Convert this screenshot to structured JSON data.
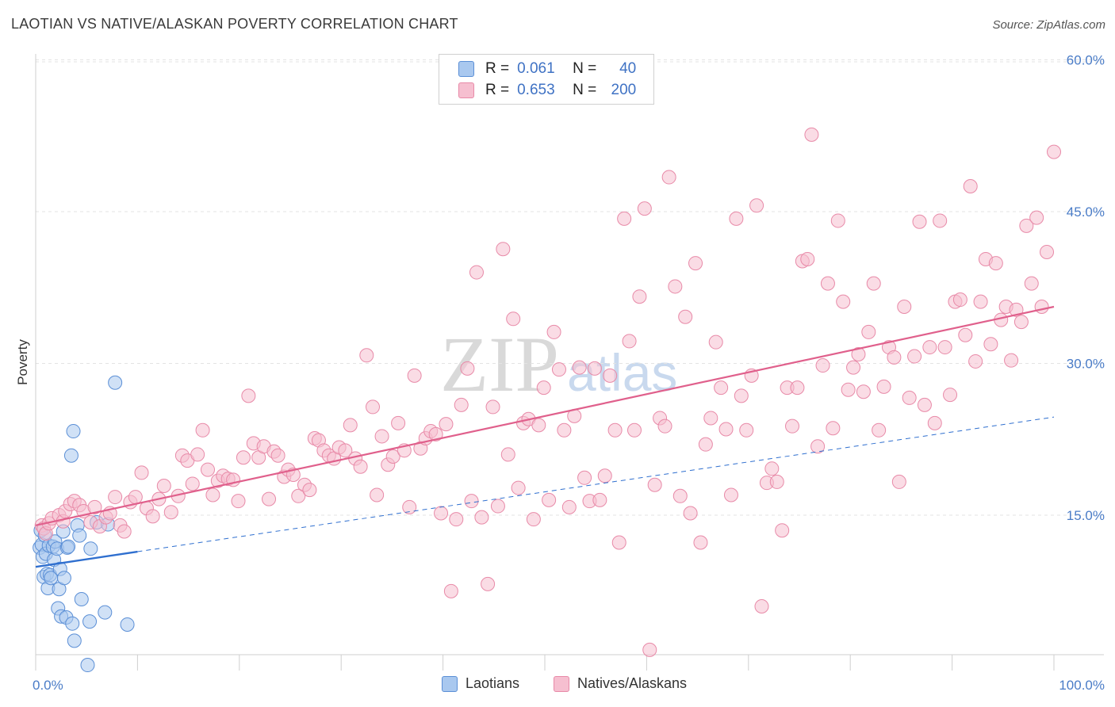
{
  "header": {
    "title": "LAOTIAN VS NATIVE/ALASKAN POVERTY CORRELATION CHART",
    "source": "Source: ZipAtlas.com"
  },
  "legend": {
    "r_label": "R =",
    "n_label": "N =",
    "laotians": {
      "r": "0.061",
      "n": "40"
    },
    "natives": {
      "r": "0.653",
      "n": "200"
    }
  },
  "watermark": {
    "zip": "ZIP",
    "atlas": "atlas"
  },
  "colors": {
    "laotians_fill": "#a9c8ef",
    "laotians_stroke": "#5b8fd6",
    "laotians_line": "#2f6fcf",
    "natives_fill": "#f6bfd0",
    "natives_stroke": "#e88aa8",
    "natives_line": "#e0608c",
    "tick_text": "#4a7cc7"
  },
  "chart_data": {
    "type": "scatter",
    "title": "LAOTIAN VS NATIVE/ALASKAN POVERTY CORRELATION CHART",
    "xlabel": "",
    "ylabel": "Poverty",
    "xlim": [
      0,
      100
    ],
    "ylim": [
      0,
      62
    ],
    "x_tick_labels": [
      "0.0%",
      "100.0%"
    ],
    "y_ticks": [
      15,
      30,
      45,
      60
    ],
    "y_tick_labels": [
      "15.0%",
      "30.0%",
      "45.0%",
      "60.0%"
    ],
    "grid": true,
    "legend_position": "top-center",
    "series": [
      {
        "name": "Laotians",
        "r": 0.061,
        "n": 40,
        "trend": {
          "x": [
            0,
            10,
            100
          ],
          "y": [
            9.9,
            11.4,
            24.7
          ]
        },
        "points": [
          [
            0.4,
            11.8
          ],
          [
            0.5,
            13.5
          ],
          [
            0.6,
            12.1
          ],
          [
            0.7,
            10.9
          ],
          [
            0.8,
            8.9
          ],
          [
            0.9,
            13.0
          ],
          [
            1.0,
            11.2
          ],
          [
            1.1,
            9.2
          ],
          [
            1.2,
            7.8
          ],
          [
            1.3,
            12.0
          ],
          [
            1.4,
            9.1
          ],
          [
            1.5,
            8.8
          ],
          [
            1.7,
            11.9
          ],
          [
            1.8,
            10.6
          ],
          [
            1.9,
            12.4
          ],
          [
            2.1,
            11.7
          ],
          [
            2.2,
            5.8
          ],
          [
            2.3,
            7.7
          ],
          [
            2.4,
            9.7
          ],
          [
            2.5,
            5.0
          ],
          [
            2.7,
            13.4
          ],
          [
            2.8,
            8.8
          ],
          [
            3.0,
            4.9
          ],
          [
            3.1,
            11.8
          ],
          [
            3.2,
            11.9
          ],
          [
            3.5,
            20.9
          ],
          [
            3.6,
            4.3
          ],
          [
            3.7,
            23.3
          ],
          [
            3.8,
            2.6
          ],
          [
            4.1,
            14.0
          ],
          [
            4.3,
            13.0
          ],
          [
            4.5,
            6.7
          ],
          [
            5.1,
            0.2
          ],
          [
            5.3,
            4.5
          ],
          [
            5.4,
            11.7
          ],
          [
            6.0,
            14.3
          ],
          [
            6.8,
            5.4
          ],
          [
            7.1,
            14.1
          ],
          [
            7.8,
            28.1
          ],
          [
            9.0,
            4.2
          ]
        ]
      },
      {
        "name": "Natives/Alaskans",
        "r": 0.653,
        "n": 200,
        "trend": {
          "x": [
            0,
            100
          ],
          "y": [
            14.0,
            35.6
          ]
        },
        "points": [
          [
            0.6,
            14.0
          ],
          [
            0.8,
            13.7
          ],
          [
            1.0,
            13.2
          ],
          [
            1.3,
            14.2
          ],
          [
            1.6,
            14.7
          ],
          [
            2.3,
            15.0
          ],
          [
            2.7,
            14.4
          ],
          [
            2.9,
            15.4
          ],
          [
            3.4,
            16.1
          ],
          [
            3.8,
            16.4
          ],
          [
            4.3,
            16.0
          ],
          [
            4.7,
            15.4
          ],
          [
            5.4,
            14.3
          ],
          [
            5.8,
            15.8
          ],
          [
            6.3,
            13.9
          ],
          [
            6.9,
            14.8
          ],
          [
            7.3,
            15.2
          ],
          [
            7.8,
            16.8
          ],
          [
            8.3,
            14.0
          ],
          [
            8.7,
            13.4
          ],
          [
            9.3,
            16.3
          ],
          [
            9.8,
            16.8
          ],
          [
            10.4,
            19.2
          ],
          [
            10.9,
            15.7
          ],
          [
            11.5,
            14.9
          ],
          [
            12.1,
            16.6
          ],
          [
            12.6,
            17.9
          ],
          [
            13.3,
            15.3
          ],
          [
            14.0,
            16.9
          ],
          [
            14.4,
            20.9
          ],
          [
            14.9,
            20.4
          ],
          [
            15.4,
            18.1
          ],
          [
            15.9,
            21.0
          ],
          [
            16.4,
            23.4
          ],
          [
            16.9,
            19.5
          ],
          [
            17.4,
            17.0
          ],
          [
            17.9,
            18.4
          ],
          [
            18.4,
            18.9
          ],
          [
            18.9,
            18.6
          ],
          [
            19.4,
            18.5
          ],
          [
            19.9,
            16.4
          ],
          [
            20.4,
            20.7
          ],
          [
            20.9,
            26.8
          ],
          [
            21.4,
            22.1
          ],
          [
            21.9,
            20.7
          ],
          [
            22.4,
            21.8
          ],
          [
            22.9,
            16.6
          ],
          [
            23.4,
            21.3
          ],
          [
            23.8,
            20.9
          ],
          [
            24.4,
            18.8
          ],
          [
            24.8,
            19.5
          ],
          [
            25.3,
            19.0
          ],
          [
            25.8,
            16.9
          ],
          [
            26.4,
            18.0
          ],
          [
            26.9,
            17.5
          ],
          [
            27.4,
            22.6
          ],
          [
            27.8,
            22.4
          ],
          [
            28.3,
            21.4
          ],
          [
            28.8,
            20.9
          ],
          [
            29.3,
            20.6
          ],
          [
            29.8,
            21.7
          ],
          [
            30.4,
            21.4
          ],
          [
            30.9,
            23.9
          ],
          [
            31.4,
            20.6
          ],
          [
            31.9,
            19.8
          ],
          [
            32.5,
            30.8
          ],
          [
            33.1,
            25.7
          ],
          [
            33.5,
            17.0
          ],
          [
            34.0,
            22.8
          ],
          [
            34.6,
            20.0
          ],
          [
            35.1,
            20.8
          ],
          [
            35.6,
            24.1
          ],
          [
            36.2,
            21.4
          ],
          [
            36.7,
            15.8
          ],
          [
            37.2,
            28.8
          ],
          [
            37.8,
            21.6
          ],
          [
            38.3,
            22.6
          ],
          [
            38.8,
            23.3
          ],
          [
            39.3,
            23.0
          ],
          [
            39.8,
            15.2
          ],
          [
            40.3,
            24.0
          ],
          [
            40.8,
            7.5
          ],
          [
            41.3,
            14.6
          ],
          [
            41.8,
            25.9
          ],
          [
            42.4,
            29.5
          ],
          [
            42.8,
            16.4
          ],
          [
            43.3,
            39.0
          ],
          [
            43.8,
            14.8
          ],
          [
            44.4,
            8.2
          ],
          [
            44.9,
            25.7
          ],
          [
            45.4,
            15.9
          ],
          [
            45.9,
            41.3
          ],
          [
            46.4,
            21.0
          ],
          [
            46.9,
            34.4
          ],
          [
            47.4,
            17.7
          ],
          [
            47.9,
            24.1
          ],
          [
            48.4,
            24.5
          ],
          [
            48.9,
            14.6
          ],
          [
            49.4,
            23.9
          ],
          [
            49.9,
            27.6
          ],
          [
            50.4,
            16.5
          ],
          [
            50.9,
            33.1
          ],
          [
            51.4,
            29.4
          ],
          [
            51.9,
            23.4
          ],
          [
            52.4,
            15.8
          ],
          [
            52.9,
            24.8
          ],
          [
            53.4,
            29.6
          ],
          [
            53.9,
            18.7
          ],
          [
            54.4,
            16.4
          ],
          [
            54.9,
            29.5
          ],
          [
            55.4,
            16.5
          ],
          [
            55.9,
            18.9
          ],
          [
            56.4,
            28.8
          ],
          [
            56.9,
            23.4
          ],
          [
            57.3,
            12.3
          ],
          [
            57.8,
            44.3
          ],
          [
            58.3,
            32.2
          ],
          [
            58.8,
            23.4
          ],
          [
            59.3,
            36.6
          ],
          [
            59.8,
            45.3
          ],
          [
            60.3,
            1.7
          ],
          [
            60.8,
            18.0
          ],
          [
            61.3,
            24.6
          ],
          [
            61.8,
            23.8
          ],
          [
            62.2,
            48.4
          ],
          [
            62.8,
            37.6
          ],
          [
            63.3,
            16.9
          ],
          [
            63.8,
            34.6
          ],
          [
            64.3,
            15.2
          ],
          [
            64.8,
            39.9
          ],
          [
            65.3,
            12.3
          ],
          [
            65.8,
            22.0
          ],
          [
            66.3,
            24.6
          ],
          [
            66.8,
            32.1
          ],
          [
            67.3,
            27.6
          ],
          [
            67.8,
            23.5
          ],
          [
            68.3,
            17.0
          ],
          [
            68.8,
            44.3
          ],
          [
            69.3,
            26.8
          ],
          [
            69.8,
            23.4
          ],
          [
            70.3,
            28.8
          ],
          [
            70.8,
            45.6
          ],
          [
            71.3,
            6.0
          ],
          [
            71.8,
            18.2
          ],
          [
            72.3,
            19.6
          ],
          [
            72.8,
            18.3
          ],
          [
            73.3,
            13.5
          ],
          [
            73.8,
            27.6
          ],
          [
            74.3,
            23.8
          ],
          [
            74.8,
            27.6
          ],
          [
            75.3,
            40.1
          ],
          [
            75.8,
            40.3
          ],
          [
            76.2,
            52.6
          ],
          [
            76.8,
            21.8
          ],
          [
            77.3,
            29.8
          ],
          [
            77.8,
            37.9
          ],
          [
            78.3,
            23.6
          ],
          [
            78.8,
            44.1
          ],
          [
            79.3,
            36.1
          ],
          [
            79.8,
            27.4
          ],
          [
            80.3,
            29.6
          ],
          [
            80.8,
            30.9
          ],
          [
            81.3,
            27.2
          ],
          [
            81.8,
            33.1
          ],
          [
            82.3,
            37.9
          ],
          [
            82.8,
            23.4
          ],
          [
            83.3,
            27.7
          ],
          [
            83.8,
            31.6
          ],
          [
            84.3,
            30.6
          ],
          [
            84.8,
            18.3
          ],
          [
            85.3,
            35.6
          ],
          [
            85.8,
            26.6
          ],
          [
            86.3,
            30.7
          ],
          [
            86.8,
            44.0
          ],
          [
            87.3,
            25.9
          ],
          [
            87.8,
            31.6
          ],
          [
            88.3,
            24.1
          ],
          [
            88.8,
            44.1
          ],
          [
            89.3,
            31.6
          ],
          [
            89.8,
            26.9
          ],
          [
            90.3,
            36.1
          ],
          [
            90.8,
            36.3
          ],
          [
            91.3,
            32.8
          ],
          [
            91.8,
            47.5
          ],
          [
            92.3,
            30.2
          ],
          [
            92.8,
            36.1
          ],
          [
            93.3,
            40.3
          ],
          [
            93.8,
            31.9
          ],
          [
            94.3,
            39.9
          ],
          [
            94.8,
            34.3
          ],
          [
            95.3,
            35.6
          ],
          [
            95.8,
            30.3
          ],
          [
            96.3,
            35.3
          ],
          [
            96.8,
            34.1
          ],
          [
            97.3,
            43.6
          ],
          [
            97.8,
            37.9
          ],
          [
            98.3,
            44.4
          ],
          [
            98.8,
            35.6
          ],
          [
            99.3,
            41.0
          ],
          [
            100.0,
            50.9
          ]
        ]
      }
    ]
  }
}
